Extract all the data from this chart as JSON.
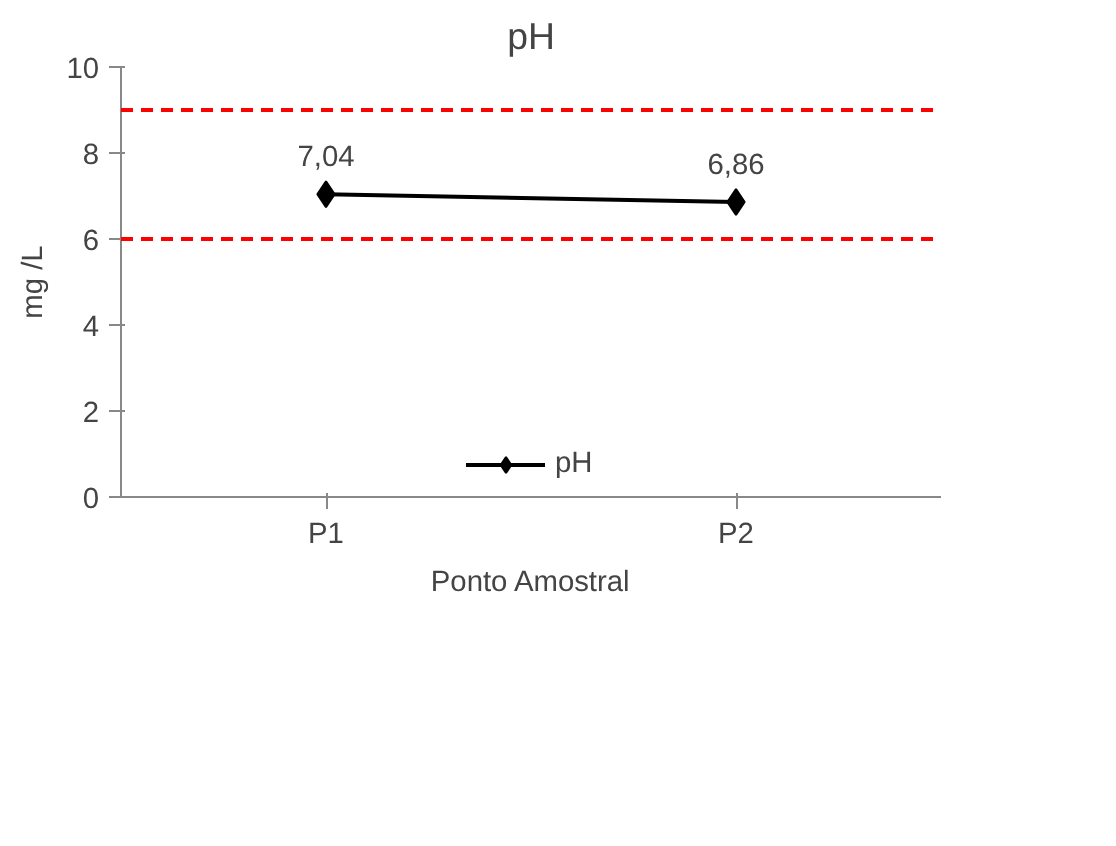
{
  "chart_data": {
    "type": "line",
    "title": "pH",
    "xlabel": "Ponto Amostral",
    "ylabel": "mg /L",
    "categories": [
      "P1",
      "P2"
    ],
    "series": [
      {
        "name": "pH",
        "color": "#000000",
        "values": [
          7.04,
          6.86
        ],
        "value_labels": [
          "7,04",
          "6,86"
        ]
      }
    ],
    "ylim": [
      0,
      10
    ],
    "yticks": [
      0,
      2,
      4,
      6,
      8,
      10
    ],
    "grid": false,
    "legend": "bottom",
    "marker": "diamond",
    "line_style": "solid",
    "ref_lines": [
      {
        "axis": "y",
        "value": 9,
        "label": null,
        "color": "#ff0000",
        "line_style": "dashed"
      },
      {
        "axis": "y",
        "value": 6,
        "label": null,
        "color": "#ff0000",
        "line_style": "dashed"
      }
    ]
  }
}
